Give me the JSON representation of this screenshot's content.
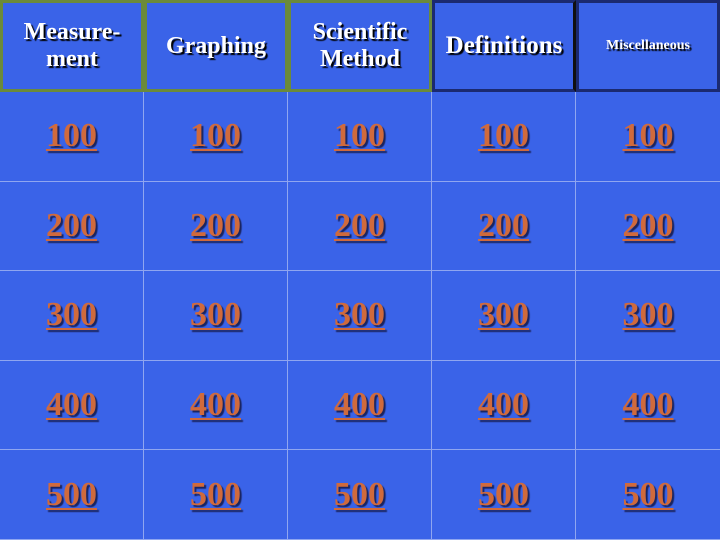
{
  "categories": [
    "Measure-\nment",
    "Graphing",
    "Scientific\nMethod",
    "Definitions",
    "Miscellaneous"
  ],
  "values": [
    "100",
    "200",
    "300",
    "400",
    "500"
  ],
  "colors": {
    "board": "#3a63e8",
    "value_text": "#d06a3c",
    "header_text": "#ffffff",
    "header_border_green": "#6b8a3a",
    "header_border_dark": "#1b2a70"
  }
}
